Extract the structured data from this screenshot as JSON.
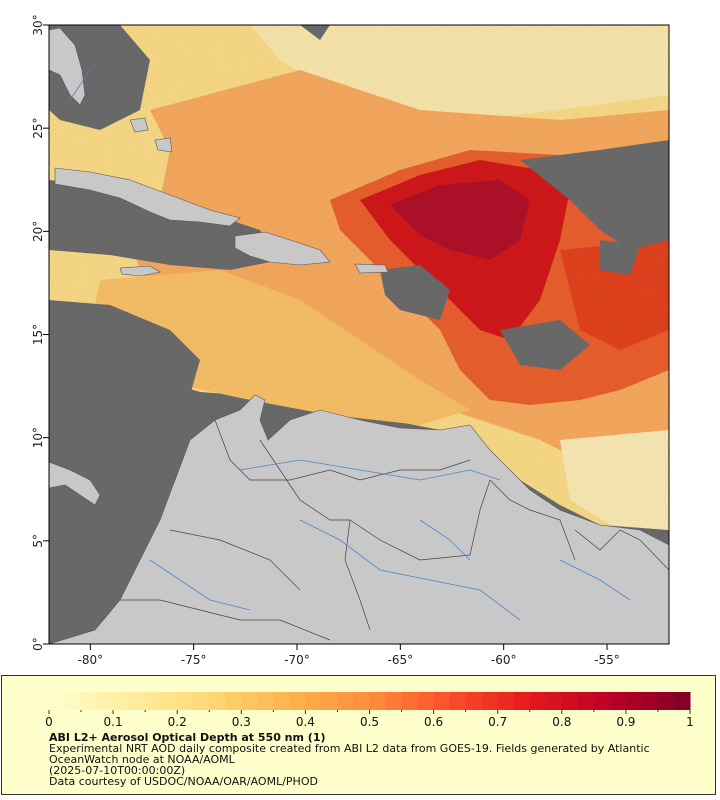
{
  "map": {
    "lat_labels": [
      "30°",
      "25°",
      "20°",
      "15°",
      "10°",
      "5°",
      "0°"
    ],
    "lon_labels": [
      "-80°",
      "-75°",
      "-70°",
      "-65°",
      "-60°",
      "-55°"
    ],
    "lat_range": [
      0,
      30
    ],
    "lon_range": [
      -82,
      -52
    ],
    "ocean_color": "#6e6e6e",
    "land_color": "#c8c8c8",
    "river_color": "#4f86c6",
    "border_color": "#333333"
  },
  "colorbar": {
    "labels": [
      "0",
      "0.1",
      "0.2",
      "0.3",
      "0.4",
      "0.5",
      "0.6",
      "0.7",
      "0.8",
      "0.9",
      "1"
    ],
    "range": [
      0,
      1
    ],
    "colors": [
      "#ffffcc",
      "#ffeda0",
      "#fed976",
      "#feb24c",
      "#fd8d3c",
      "#fc4e2a",
      "#e31a1c",
      "#bd0026",
      "#800026"
    ]
  },
  "caption": {
    "title": "ABI L2+ Aerosol Optical Depth at 550 nm (1)",
    "line1": "Experimental NRT AOD daily composite created from ABI L2 data from GOES-19. Fields generated by Atlantic OceanWatch node at NOAA/AOML",
    "line2": "(2025-07-10T00:00:00Z)",
    "line3": "Data courtesy of USDOC/NOAA/OAR/AOML/PHOD"
  }
}
